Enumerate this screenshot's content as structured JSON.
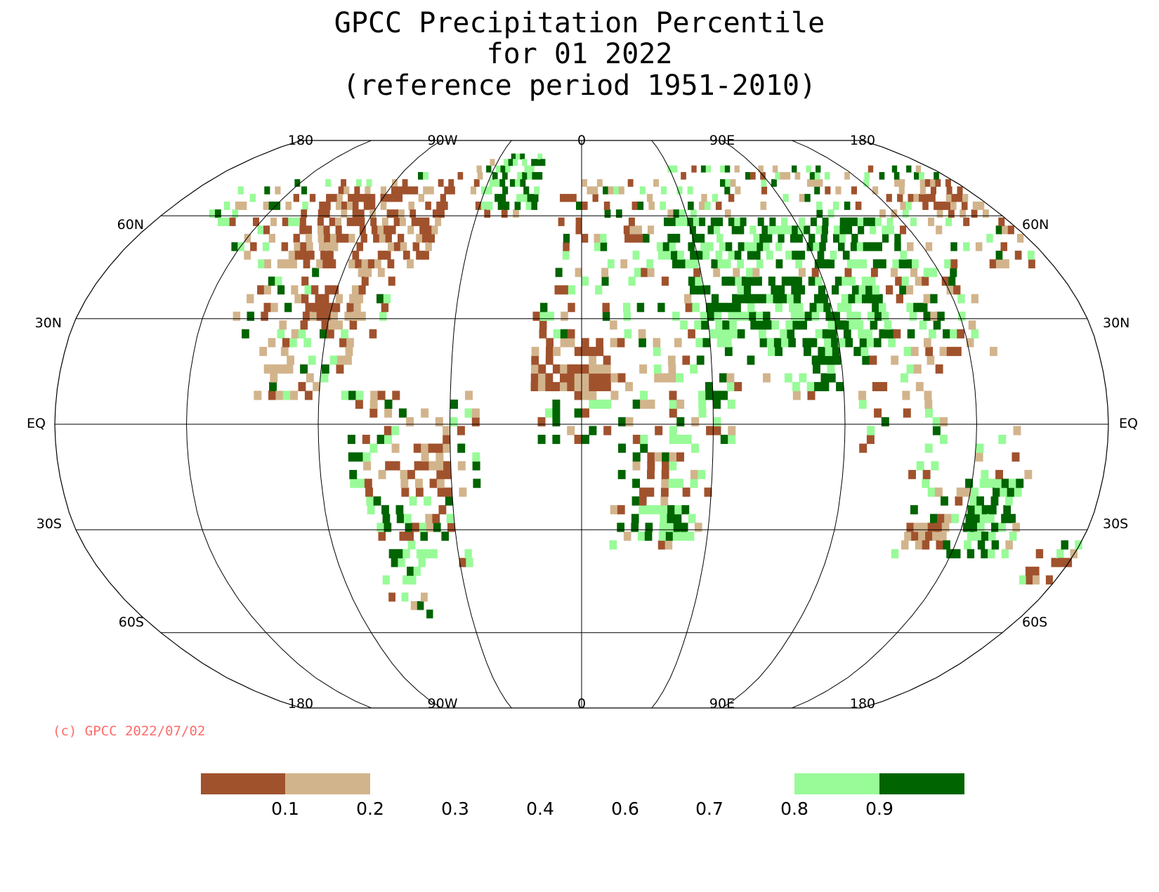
{
  "title": {
    "line1": "GPCC Precipitation Percentile",
    "line2": "for 01 2022",
    "line3": "(reference period 1951-2010)"
  },
  "map": {
    "projection": "robinson",
    "central_longitude": 0,
    "graticule_lon_step": 45,
    "graticule_lats": [
      60,
      30,
      0,
      -30,
      -60
    ],
    "top_lon_labels": [
      "180",
      "90W",
      "0",
      "90E",
      "180"
    ],
    "bottom_lon_labels": [
      "180",
      "90W",
      "0",
      "90E",
      "180"
    ],
    "left_lat_labels": [
      "60N",
      "30N",
      "EQ",
      "30S",
      "60S"
    ],
    "right_lat_labels": [
      "60N",
      "30N",
      "EQ",
      "30S",
      "60S"
    ]
  },
  "copyright": {
    "text": "(c) GPCC 2022/07/02",
    "color": "#ff6a6a"
  },
  "legend": {
    "labels": [
      "0.1",
      "0.2",
      "0.3",
      "0.4",
      "0.6",
      "0.7",
      "0.8",
      "0.9"
    ],
    "classes": [
      {
        "upper": 0.1,
        "color": "#a0522d"
      },
      {
        "upper": 0.2,
        "color": "#d2b48c"
      },
      {
        "upper": 0.3,
        "color": "#ffffff"
      },
      {
        "upper": 0.4,
        "color": "#ffffff"
      },
      {
        "upper": 0.6,
        "color": "#ffffff"
      },
      {
        "upper": 0.7,
        "color": "#ffffff"
      },
      {
        "upper": 0.8,
        "color": "#ffffff"
      },
      {
        "upper": 0.9,
        "color": "#98fb98"
      },
      {
        "upper": 1.0,
        "color": "#006400"
      }
    ]
  }
}
